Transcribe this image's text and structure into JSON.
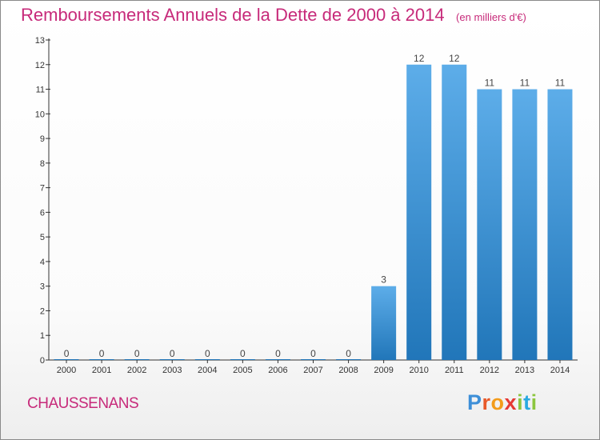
{
  "title": "Remboursements Annuels de la Dette de 2000 à 2014",
  "unit": "(en milliers d'€)",
  "commune": "CHAUSSENANS",
  "brand": [
    "P",
    "r",
    "o",
    "x",
    "i",
    "t",
    "i"
  ],
  "colors": {
    "title": "#c72a7a",
    "bar_light": "#5dade9",
    "bar_dark": "#2176b9",
    "axis": "#333333"
  },
  "chart_data": {
    "type": "bar",
    "title": "Remboursements Annuels de la Dette de 2000 à 2014",
    "subtitle": "(en milliers d'€)",
    "xlabel": "",
    "ylabel": "",
    "categories": [
      "2000",
      "2001",
      "2002",
      "2003",
      "2004",
      "2005",
      "2006",
      "2007",
      "2008",
      "2009",
      "2010",
      "2011",
      "2012",
      "2013",
      "2014"
    ],
    "values": [
      0,
      0,
      0,
      0,
      0,
      0,
      0,
      0,
      0,
      3,
      12,
      12,
      11,
      11,
      11
    ],
    "data_labels": [
      "0",
      "0",
      "0",
      "0",
      "0",
      "0",
      "0",
      "0",
      "0",
      "3",
      "12",
      "12",
      "11",
      "11",
      "11"
    ],
    "ylim": [
      0,
      13
    ],
    "yticks": [
      "0",
      "1",
      "2",
      "3",
      "4",
      "5",
      "6",
      "7",
      "8",
      "9",
      "10",
      "11",
      "12",
      "13"
    ],
    "grid": false,
    "legend": "none"
  }
}
